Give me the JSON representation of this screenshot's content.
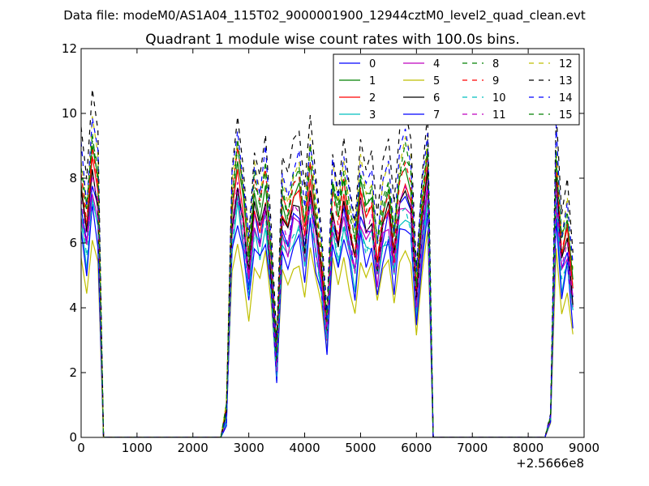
{
  "figure": {
    "suptitle": "Data file: modeM0/AS1A04_115T02_9000001900_12944cztM0_level2_quad_clean.evt"
  },
  "chart_data": {
    "type": "line",
    "title": "Quadrant 1 module wise count rates with 100.0s bins.",
    "xlabel": "",
    "ylabel": "",
    "x_offset_label": "+2.5666e8",
    "xlim": [
      0,
      9000
    ],
    "ylim": [
      0,
      12
    ],
    "xticks": [
      0,
      1000,
      2000,
      3000,
      4000,
      5000,
      6000,
      7000,
      8000,
      9000
    ],
    "yticks": [
      0,
      2,
      4,
      6,
      8,
      10,
      12
    ],
    "legend_position": "top-right",
    "x": [
      0,
      100,
      200,
      300,
      400,
      500,
      600,
      700,
      800,
      900,
      1000,
      1100,
      1200,
      1300,
      1400,
      1500,
      1600,
      1700,
      1800,
      1900,
      2000,
      2100,
      2200,
      2300,
      2400,
      2500,
      2600,
      2700,
      2800,
      2900,
      3000,
      3100,
      3200,
      3300,
      3400,
      3500,
      3600,
      3700,
      3800,
      3900,
      4000,
      4100,
      4200,
      4300,
      4400,
      4500,
      4600,
      4700,
      4800,
      4900,
      5000,
      5100,
      5200,
      5300,
      5400,
      5500,
      5600,
      5700,
      5800,
      5900,
      6000,
      6100,
      6200,
      6300,
      6400,
      6500,
      6600,
      6700,
      6800,
      6900,
      7000,
      7100,
      7200,
      7300,
      7400,
      7500,
      7600,
      7700,
      7800,
      7900,
      8000,
      8100,
      8200,
      8300,
      8400,
      8500,
      8600,
      8700,
      8800
    ],
    "base_profile": [
      7.3,
      6.0,
      8.1,
      7.1,
      0,
      0,
      0,
      0,
      0,
      0,
      0,
      0,
      0,
      0,
      0,
      0,
      0,
      0,
      0,
      0,
      0,
      0,
      0,
      0,
      0,
      0,
      0.7,
      6.5,
      7.8,
      6.6,
      4.9,
      6.9,
      6.3,
      7.2,
      5.0,
      2.2,
      6.5,
      6.1,
      6.9,
      7.1,
      5.8,
      7.6,
      6.2,
      5.0,
      3.1,
      6.9,
      6.0,
      7.3,
      6.1,
      5.2,
      7.1,
      6.3,
      6.7,
      5.1,
      6.4,
      6.9,
      5.4,
      7.2,
      7.7,
      7.1,
      4.1,
      6.3,
      7.9,
      0,
      0,
      0,
      0,
      0,
      0,
      0,
      0,
      0,
      0,
      0,
      0,
      0,
      0,
      0,
      0,
      0,
      0,
      0,
      0,
      0,
      0.6,
      7.7,
      5.2,
      6.0,
      4.2
    ],
    "series": [
      {
        "name": "0",
        "color": "#0000ff",
        "dash": "solid",
        "scale": 0.98
      },
      {
        "name": "1",
        "color": "#008000",
        "dash": "solid",
        "scale": 1.1
      },
      {
        "name": "2",
        "color": "#ff0000",
        "dash": "solid",
        "scale": 1.04
      },
      {
        "name": "3",
        "color": "#00bfbf",
        "dash": "solid",
        "scale": 0.9
      },
      {
        "name": "4",
        "color": "#bf00bf",
        "dash": "solid",
        "scale": 0.95
      },
      {
        "name": "5",
        "color": "#bfbf00",
        "dash": "solid",
        "scale": 0.78
      },
      {
        "name": "6",
        "color": "#000000",
        "dash": "solid",
        "scale": 1.02
      },
      {
        "name": "7",
        "color": "#0000ff",
        "dash": "solid",
        "scale": 0.86
      },
      {
        "name": "8",
        "color": "#008000",
        "dash": "dashed",
        "scale": 1.14
      },
      {
        "name": "9",
        "color": "#ff0000",
        "dash": "dashed",
        "scale": 1.12
      },
      {
        "name": "10",
        "color": "#00bfbf",
        "dash": "dashed",
        "scale": 0.93
      },
      {
        "name": "11",
        "color": "#bf00bf",
        "dash": "dashed",
        "scale": 1.01
      },
      {
        "name": "12",
        "color": "#bfbf00",
        "dash": "dashed",
        "scale": 1.2
      },
      {
        "name": "13",
        "color": "#000000",
        "dash": "dashed",
        "scale": 1.3
      },
      {
        "name": "14",
        "color": "#0000ff",
        "dash": "dashed",
        "scale": 1.22
      },
      {
        "name": "15",
        "color": "#008000",
        "dash": "dashed",
        "scale": 1.16
      }
    ]
  }
}
